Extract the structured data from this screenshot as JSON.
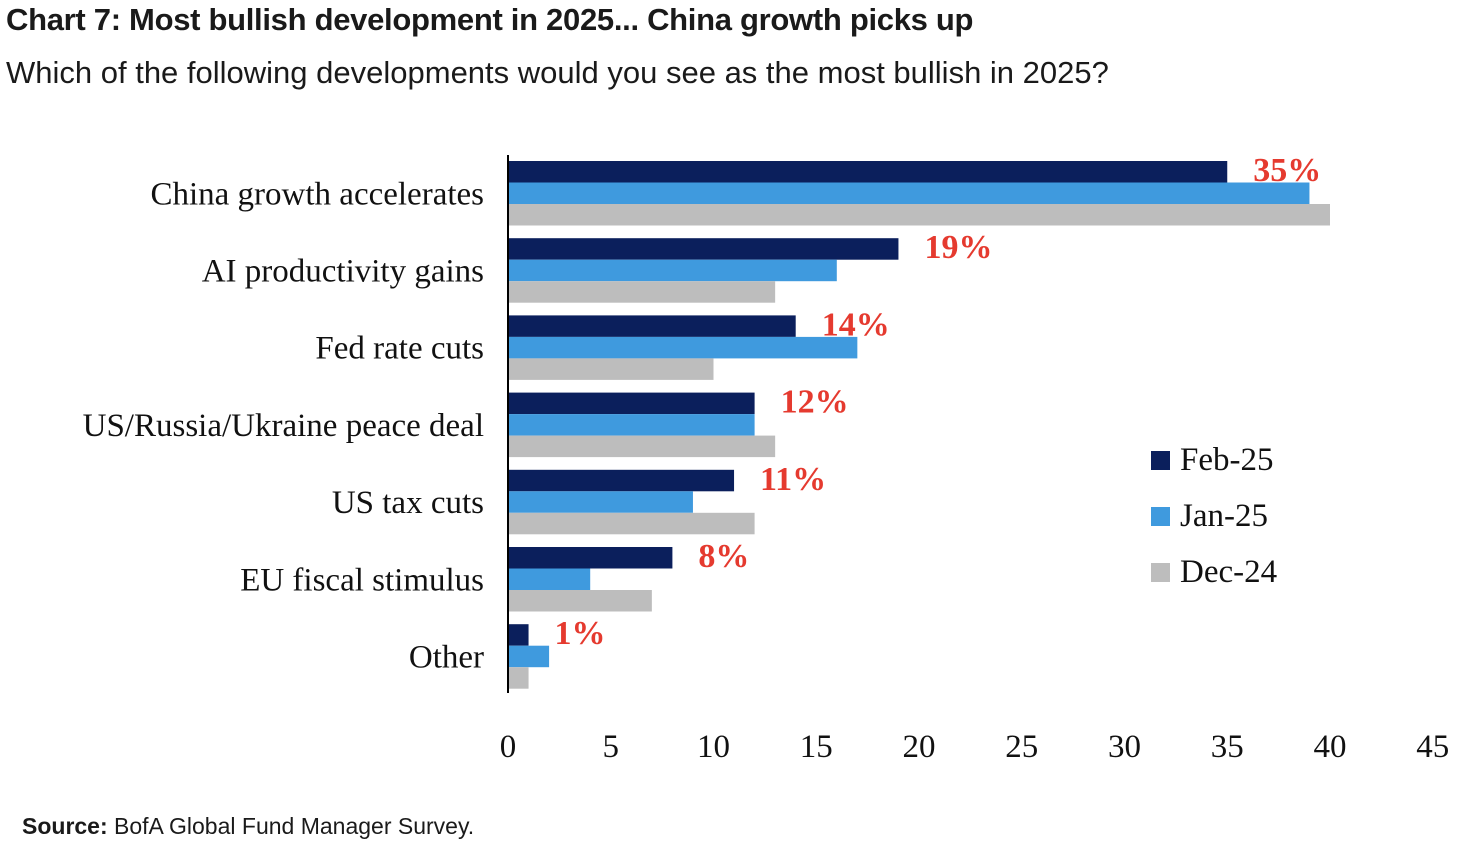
{
  "header": {
    "title": "Chart 7: Most bullish development in 2025... China growth picks up",
    "subtitle": "Which of the following developments would you see as the most bullish in 2025?"
  },
  "footer": {
    "source_label": "Source:",
    "source_text": " BofA Global Fund Manager Survey."
  },
  "chart_data": {
    "type": "bar",
    "orientation": "horizontal",
    "categories": [
      "China growth accelerates",
      "AI productivity gains",
      "Fed rate cuts",
      "US/Russia/Ukraine peace deal",
      "US tax cuts",
      "EU fiscal stimulus",
      "Other"
    ],
    "series": [
      {
        "name": "Feb-25",
        "color": "#0b1f5c",
        "values": [
          35,
          19,
          14,
          12,
          11,
          8,
          1
        ]
      },
      {
        "name": "Jan-25",
        "color": "#3f9ade",
        "values": [
          39,
          16,
          17,
          12,
          9,
          4,
          2
        ]
      },
      {
        "name": "Dec-24",
        "color": "#bdbdbd",
        "values": [
          40,
          13,
          10,
          13,
          12,
          7,
          1
        ]
      }
    ],
    "data_labels": [
      "35%",
      "19%",
      "14%",
      "12%",
      "11%",
      "8%",
      "1%"
    ],
    "data_label_color": "#e53a2f",
    "xlim": [
      0,
      45
    ],
    "x_ticks": [
      "0",
      "5",
      "10",
      "15",
      "20",
      "25",
      "30",
      "35",
      "40",
      "45"
    ],
    "grid": false,
    "legend_position": "right"
  }
}
